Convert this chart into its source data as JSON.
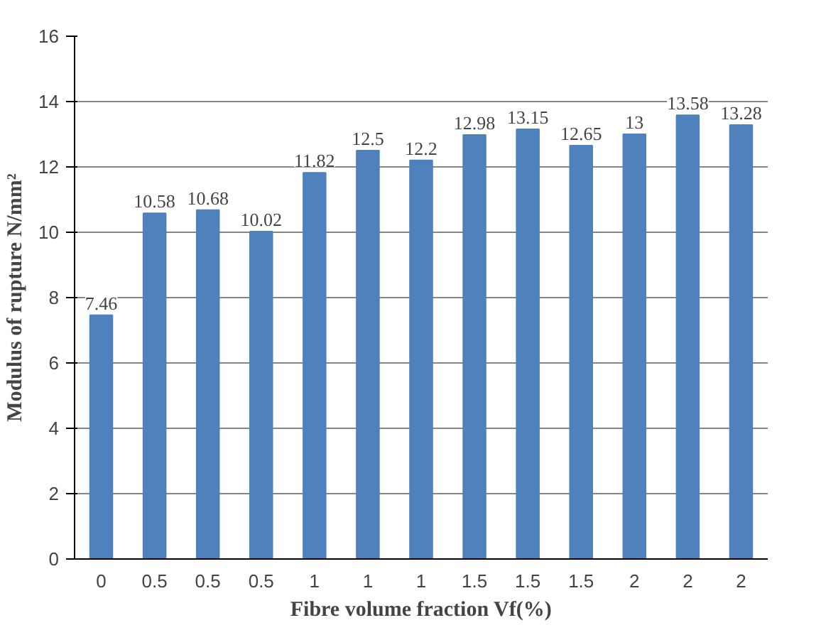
{
  "chart_data": {
    "type": "bar",
    "xlabel": "Fibre volume fraction Vf(%)",
    "ylabel": "Modulus of rupture N/mm²",
    "categories": [
      "0",
      "0.5",
      "0.5",
      "0.5",
      "1",
      "1",
      "1",
      "1.5",
      "1.5",
      "1.5",
      "2",
      "2",
      "2"
    ],
    "values": [
      7.46,
      10.58,
      10.68,
      10.02,
      11.82,
      12.5,
      12.2,
      12.98,
      13.15,
      12.65,
      13,
      13.58,
      13.28
    ],
    "color": "#4f81bd",
    "ylim": [
      0,
      16
    ],
    "yticks": [
      0,
      2,
      4,
      6,
      8,
      10,
      12,
      14,
      16
    ],
    "grid": "y",
    "data_labels": true
  }
}
